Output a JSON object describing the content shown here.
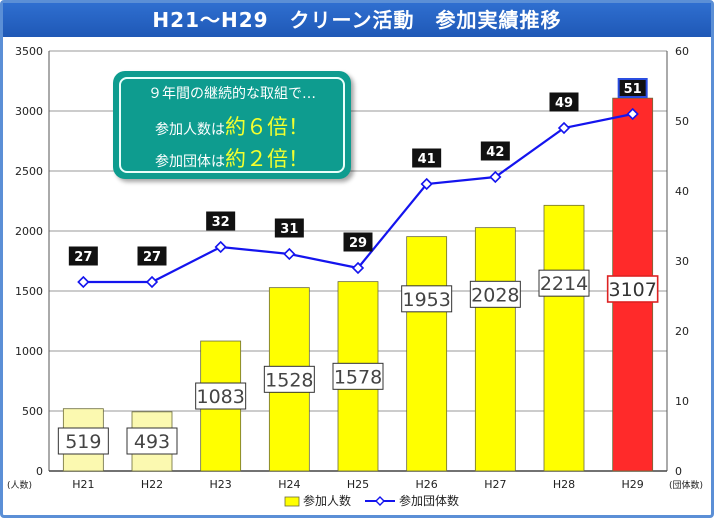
{
  "title": "H21～H29　クリーン活動　参加実績推移",
  "callout": {
    "line1": "９年間の継続的な取組で…",
    "line2_prefix": "参加人数は",
    "line2_big": "約６倍！",
    "line3_prefix": "参加団体は",
    "line3_big": "約２倍！"
  },
  "chart_data": {
    "type": "bar",
    "categories": [
      "H21",
      "H22",
      "H23",
      "H24",
      "H25",
      "H26",
      "H27",
      "H28",
      "H29"
    ],
    "series": [
      {
        "name": "参加人数",
        "type": "bar",
        "axis": "left",
        "values": [
          519,
          493,
          1083,
          1528,
          1578,
          1953,
          2028,
          2214,
          3107
        ]
      },
      {
        "name": "参加団体数",
        "type": "line",
        "axis": "right",
        "values": [
          27,
          27,
          32,
          31,
          29,
          41,
          42,
          49,
          51
        ]
      }
    ],
    "left_axis": {
      "label": "(人数)",
      "ylim": [
        0,
        3500
      ],
      "ticks": [
        0,
        500,
        1000,
        1500,
        2000,
        2500,
        3000,
        3500
      ]
    },
    "right_axis": {
      "label": "(団体数)",
      "ylim": [
        0,
        60
      ],
      "ticks": [
        0,
        10,
        20,
        30,
        40,
        50,
        60
      ]
    },
    "grid": true,
    "legend_position": "bottom",
    "colors": {
      "bar_light": "#fbf9b0",
      "bar": "#ffff00",
      "bar_highlight": "#ff2a2a",
      "line": "#1414ee",
      "label_box_dark": "#111111"
    }
  }
}
